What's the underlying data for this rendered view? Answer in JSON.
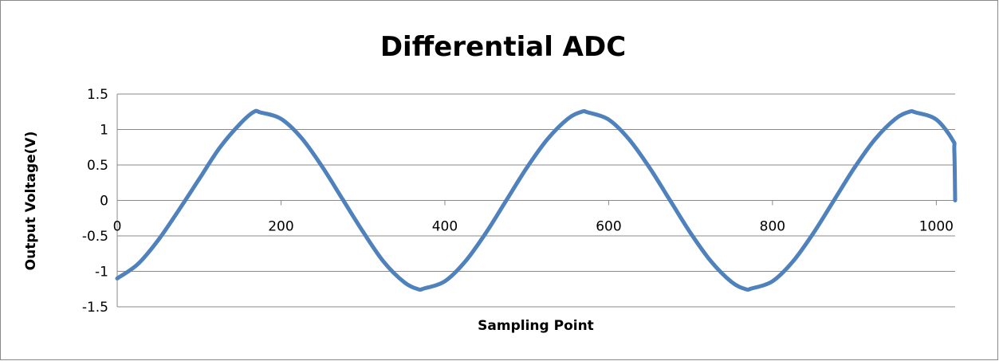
{
  "chart_data": {
    "type": "line",
    "title": "Differential ADC",
    "xlabel": "Sampling Point",
    "ylabel": "Output Voltage(V)",
    "xlim": [
      0,
      1023
    ],
    "ylim": [
      -1.5,
      1.5
    ],
    "x_ticks": [
      0,
      200,
      400,
      600,
      800,
      1000
    ],
    "y_ticks": [
      1.5,
      1,
      0.5,
      0,
      -0.5,
      -1,
      -1.5
    ],
    "x_tick_labels": [
      "0",
      "200",
      "400",
      "600",
      "800",
      "1000"
    ],
    "y_tick_labels": [
      "1.5",
      "1",
      "0.5",
      "0",
      "-0.5",
      "-1",
      "-1.5"
    ],
    "grid": "horizontal",
    "legend": "none",
    "series_color": "#4f81bd",
    "series": [
      {
        "x": [
          0,
          25,
          50,
          75,
          100,
          125,
          150,
          167,
          175,
          200,
          225,
          250,
          275,
          300,
          325,
          350,
          367,
          375,
          400,
          425,
          450,
          475,
          500,
          525,
          550,
          567,
          575,
          600,
          625,
          650,
          675,
          700,
          725,
          750,
          767,
          775,
          800,
          825,
          850,
          875,
          900,
          925,
          950,
          967,
          975,
          1000,
          1020,
          1022,
          1023
        ],
        "y": [
          -1.1,
          -0.9,
          -0.56,
          -0.14,
          0.3,
          0.74,
          1.08,
          1.25,
          1.24,
          1.15,
          0.88,
          0.48,
          0.02,
          -0.44,
          -0.86,
          -1.15,
          -1.25,
          -1.24,
          -1.14,
          -0.86,
          -0.46,
          0.0,
          0.46,
          0.86,
          1.15,
          1.25,
          1.24,
          1.14,
          0.86,
          0.46,
          0.0,
          -0.46,
          -0.86,
          -1.15,
          -1.25,
          -1.24,
          -1.14,
          -0.86,
          -0.46,
          0.0,
          0.46,
          0.86,
          1.15,
          1.25,
          1.24,
          1.14,
          0.85,
          0.7,
          0.0
        ]
      }
    ]
  }
}
